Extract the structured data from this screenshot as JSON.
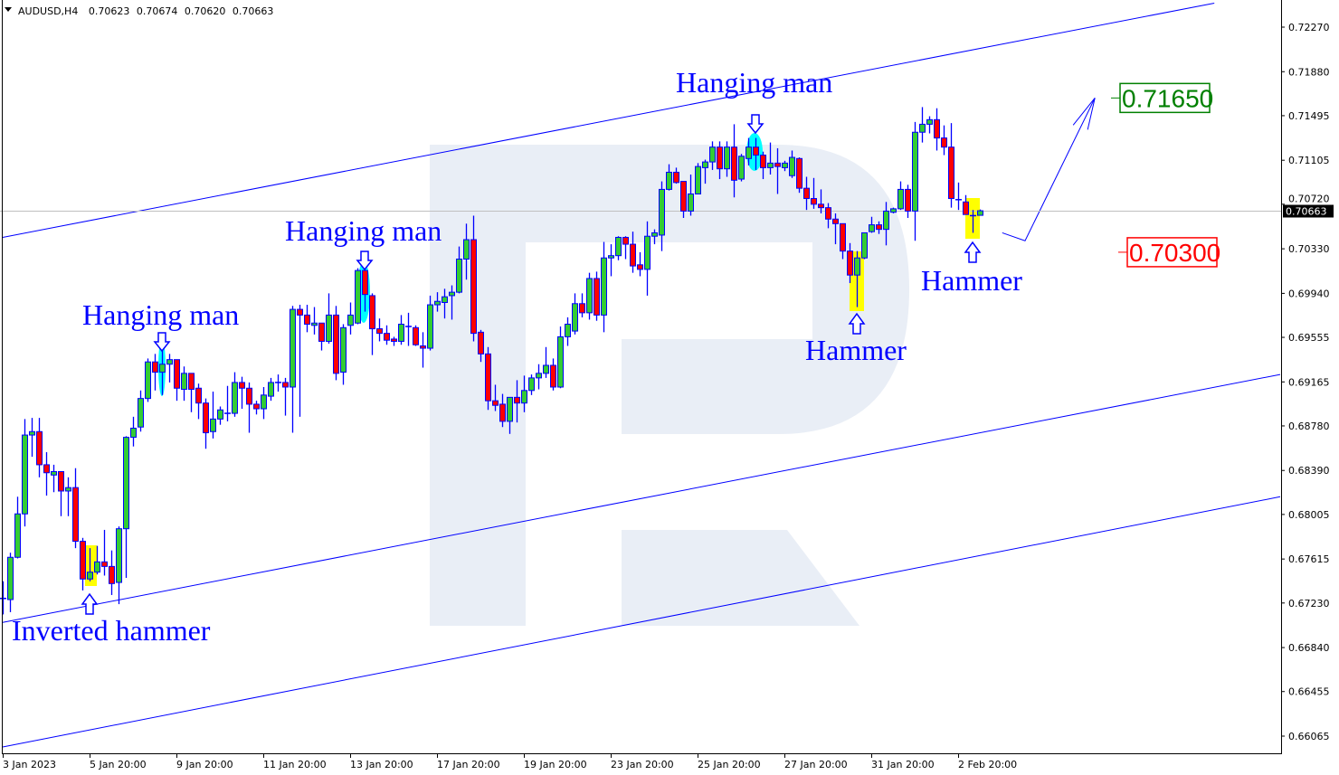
{
  "header": {
    "symbol": "AUDUSD,H4",
    "open": "0.70623",
    "high": "0.70674",
    "low": "0.70620",
    "close": "0.70663"
  },
  "colors": {
    "bull": "#33cc33",
    "bear": "#ff0000",
    "outline": "#0000ff",
    "lines": "#0000ff",
    "highlight": "#ffff00",
    "pattern_glow": "#00ffff",
    "target_up": "#008000",
    "target_down": "#ff0000",
    "watermark": "#e9eef6",
    "price_line": "#c0c0c0"
  },
  "chart_data": {
    "type": "candlestick",
    "title": "AUDUSD,H4",
    "timeframe": "H4",
    "ylim": [
      0.6591,
      0.7251
    ],
    "grid": false,
    "yticks": [
      "0.72270",
      "0.71880",
      "0.71495",
      "0.71105",
      "0.70720",
      "0.70330",
      "0.69940",
      "0.69555",
      "0.69165",
      "0.68780",
      "0.68390",
      "0.68005",
      "0.67615",
      "0.67230",
      "0.66840",
      "0.66455",
      "0.66065"
    ],
    "xticks": [
      {
        "label": "3 Jan 2023",
        "index": 0
      },
      {
        "label": "5 Jan 20:00",
        "index": 12
      },
      {
        "label": "9 Jan 20:00",
        "index": 24
      },
      {
        "label": "11 Jan 20:00",
        "index": 36
      },
      {
        "label": "13 Jan 20:00",
        "index": 48
      },
      {
        "label": "17 Jan 20:00",
        "index": 60
      },
      {
        "label": "19 Jan 20:00",
        "index": 72
      },
      {
        "label": "23 Jan 20:00",
        "index": 84
      },
      {
        "label": "25 Jan 20:00",
        "index": 96
      },
      {
        "label": "27 Jan 20:00",
        "index": 108
      },
      {
        "label": "31 Jan 20:00",
        "index": 120
      },
      {
        "label": "2 Feb 20:00",
        "index": 132
      }
    ],
    "current_price": "0.70663",
    "candles_ohlc": [
      [
        0.6726,
        0.6742,
        0.6713,
        0.6727
      ],
      [
        0.6726,
        0.6767,
        0.6715,
        0.6763
      ],
      [
        0.6763,
        0.6816,
        0.6762,
        0.6801
      ],
      [
        0.6801,
        0.6884,
        0.679,
        0.687
      ],
      [
        0.687,
        0.6885,
        0.6851,
        0.6873
      ],
      [
        0.6873,
        0.6885,
        0.6833,
        0.6844
      ],
      [
        0.6844,
        0.6855,
        0.6817,
        0.6837
      ],
      [
        0.6835,
        0.6844,
        0.682,
        0.6838
      ],
      [
        0.6838,
        0.6838,
        0.6799,
        0.6821
      ],
      [
        0.6821,
        0.6833,
        0.6799,
        0.6824
      ],
      [
        0.6824,
        0.6841,
        0.6771,
        0.6777
      ],
      [
        0.6777,
        0.678,
        0.6734,
        0.6744
      ],
      [
        0.6744,
        0.6771,
        0.6742,
        0.675
      ],
      [
        0.675,
        0.6773,
        0.6748,
        0.6759
      ],
      [
        0.6759,
        0.6787,
        0.6747,
        0.6755
      ],
      [
        0.6755,
        0.6769,
        0.673,
        0.674
      ],
      [
        0.6741,
        0.679,
        0.6722,
        0.6788
      ],
      [
        0.6788,
        0.6869,
        0.6745,
        0.6868
      ],
      [
        0.6868,
        0.6886,
        0.686,
        0.6876
      ],
      [
        0.6877,
        0.6909,
        0.6873,
        0.6902
      ],
      [
        0.6902,
        0.6937,
        0.6899,
        0.6934
      ],
      [
        0.6934,
        0.6941,
        0.6909,
        0.6925
      ],
      [
        0.6925,
        0.6954,
        0.6905,
        0.6932
      ],
      [
        0.6932,
        0.6941,
        0.6916,
        0.6936
      ],
      [
        0.6936,
        0.6936,
        0.69,
        0.6911
      ],
      [
        0.691,
        0.693,
        0.69,
        0.6924
      ],
      [
        0.6924,
        0.6924,
        0.689,
        0.691
      ],
      [
        0.6911,
        0.6915,
        0.6884,
        0.6898
      ],
      [
        0.6898,
        0.6902,
        0.6858,
        0.6872
      ],
      [
        0.6873,
        0.6908,
        0.6867,
        0.6884
      ],
      [
        0.6884,
        0.6895,
        0.6879,
        0.6892
      ],
      [
        0.6889,
        0.6913,
        0.6882,
        0.6889
      ],
      [
        0.6889,
        0.6925,
        0.6886,
        0.6916
      ],
      [
        0.6916,
        0.6921,
        0.6893,
        0.6911
      ],
      [
        0.6911,
        0.6916,
        0.6872,
        0.6897
      ],
      [
        0.6897,
        0.69,
        0.6888,
        0.6893
      ],
      [
        0.6893,
        0.6912,
        0.6884,
        0.6905
      ],
      [
        0.6904,
        0.692,
        0.69,
        0.6916
      ],
      [
        0.6916,
        0.6923,
        0.6908,
        0.6916
      ],
      [
        0.6916,
        0.692,
        0.6887,
        0.6912
      ],
      [
        0.6912,
        0.6983,
        0.6872,
        0.698
      ],
      [
        0.698,
        0.6984,
        0.6886,
        0.6975
      ],
      [
        0.6975,
        0.6984,
        0.696,
        0.6967
      ],
      [
        0.6966,
        0.6982,
        0.6958,
        0.6968
      ],
      [
        0.6968,
        0.6968,
        0.6944,
        0.6952
      ],
      [
        0.6952,
        0.6994,
        0.695,
        0.6975
      ],
      [
        0.6975,
        0.6983,
        0.6918,
        0.6924
      ],
      [
        0.6925,
        0.6967,
        0.6914,
        0.6964
      ],
      [
        0.6966,
        0.6986,
        0.6958,
        0.6975
      ],
      [
        0.6968,
        0.7016,
        0.6967,
        0.7014
      ],
      [
        0.7014,
        0.7021,
        0.6978,
        0.6993
      ],
      [
        0.6992,
        0.6994,
        0.694,
        0.6963
      ],
      [
        0.6963,
        0.6972,
        0.6952,
        0.6959
      ],
      [
        0.6959,
        0.6966,
        0.6949,
        0.6953
      ],
      [
        0.6954,
        0.6956,
        0.6948,
        0.6952
      ],
      [
        0.6952,
        0.6975,
        0.6949,
        0.6967
      ],
      [
        0.6965,
        0.6977,
        0.6948,
        0.6965
      ],
      [
        0.6964,
        0.6966,
        0.6948,
        0.6949
      ],
      [
        0.6948,
        0.696,
        0.6929,
        0.6946
      ],
      [
        0.6946,
        0.6992,
        0.6944,
        0.6984
      ],
      [
        0.6984,
        0.6995,
        0.6978,
        0.6987
      ],
      [
        0.6986,
        0.6998,
        0.6972,
        0.6991
      ],
      [
        0.6992,
        0.7001,
        0.6971,
        0.6995
      ],
      [
        0.6995,
        0.7035,
        0.6994,
        0.7024
      ],
      [
        0.7024,
        0.7055,
        0.7006,
        0.7041
      ],
      [
        0.7041,
        0.7062,
        0.6952,
        0.6959
      ],
      [
        0.696,
        0.6962,
        0.6934,
        0.6941
      ],
      [
        0.6941,
        0.6947,
        0.6892,
        0.69
      ],
      [
        0.69,
        0.6914,
        0.6891,
        0.6896
      ],
      [
        0.6897,
        0.6906,
        0.6877,
        0.6882
      ],
      [
        0.6882,
        0.6903,
        0.6871,
        0.6903
      ],
      [
        0.6903,
        0.6918,
        0.6881,
        0.6898
      ],
      [
        0.6898,
        0.6922,
        0.689,
        0.6909
      ],
      [
        0.6909,
        0.6923,
        0.6905,
        0.692
      ],
      [
        0.692,
        0.6932,
        0.691,
        0.6924
      ],
      [
        0.6924,
        0.6947,
        0.692,
        0.6931
      ],
      [
        0.6931,
        0.6937,
        0.6909,
        0.6912
      ],
      [
        0.6912,
        0.6965,
        0.6911,
        0.6956
      ],
      [
        0.6956,
        0.6973,
        0.6948,
        0.6967
      ],
      [
        0.6961,
        0.6994,
        0.6958,
        0.6985
      ],
      [
        0.6985,
        0.6994,
        0.6973,
        0.6977
      ],
      [
        0.6977,
        0.7012,
        0.6971,
        0.7007
      ],
      [
        0.7007,
        0.7013,
        0.697,
        0.6975
      ],
      [
        0.6975,
        0.7039,
        0.696,
        0.7025
      ],
      [
        0.7025,
        0.7037,
        0.7009,
        0.7027
      ],
      [
        0.7027,
        0.7044,
        0.7023,
        0.7043
      ],
      [
        0.7043,
        0.7044,
        0.7024,
        0.7037
      ],
      [
        0.7037,
        0.7048,
        0.7012,
        0.7018
      ],
      [
        0.7019,
        0.703,
        0.7009,
        0.7015
      ],
      [
        0.7015,
        0.7057,
        0.6992,
        0.7044
      ],
      [
        0.7044,
        0.705,
        0.7037,
        0.7047
      ],
      [
        0.7045,
        0.7092,
        0.7031,
        0.7085
      ],
      [
        0.7085,
        0.7107,
        0.7084,
        0.71
      ],
      [
        0.71,
        0.7104,
        0.709,
        0.7091
      ],
      [
        0.7092,
        0.7092,
        0.706,
        0.7066
      ],
      [
        0.7066,
        0.7098,
        0.7062,
        0.7081
      ],
      [
        0.7081,
        0.7108,
        0.7081,
        0.7105
      ],
      [
        0.7104,
        0.7111,
        0.709,
        0.7109
      ],
      [
        0.7109,
        0.7127,
        0.7102,
        0.7122
      ],
      [
        0.7122,
        0.7127,
        0.7094,
        0.7103
      ],
      [
        0.7103,
        0.7127,
        0.7096,
        0.7122
      ],
      [
        0.7122,
        0.7142,
        0.7078,
        0.7093
      ],
      [
        0.7094,
        0.7116,
        0.7092,
        0.7114
      ],
      [
        0.7112,
        0.713,
        0.7106,
        0.7122
      ],
      [
        0.7122,
        0.713,
        0.7102,
        0.7115
      ],
      [
        0.7115,
        0.7118,
        0.7094,
        0.7104
      ],
      [
        0.7104,
        0.7126,
        0.7098,
        0.7108
      ],
      [
        0.7108,
        0.7121,
        0.7081,
        0.7105
      ],
      [
        0.7104,
        0.711,
        0.7101,
        0.7108
      ],
      [
        0.7097,
        0.7119,
        0.7095,
        0.7113
      ],
      [
        0.7112,
        0.7113,
        0.7082,
        0.7086
      ],
      [
        0.7086,
        0.7096,
        0.7067,
        0.7077
      ],
      [
        0.7077,
        0.7095,
        0.7068,
        0.7072
      ],
      [
        0.7072,
        0.7085,
        0.7064,
        0.7069
      ],
      [
        0.7069,
        0.7073,
        0.7051,
        0.7059
      ],
      [
        0.7059,
        0.7064,
        0.7037,
        0.7055
      ],
      [
        0.7055,
        0.7055,
        0.7024,
        0.7031
      ],
      [
        0.7031,
        0.7038,
        0.7003,
        0.701
      ],
      [
        0.701,
        0.7031,
        0.6982,
        0.7025
      ],
      [
        0.7025,
        0.7047,
        0.7024,
        0.7047
      ],
      [
        0.7048,
        0.7061,
        0.7047,
        0.7054
      ],
      [
        0.7054,
        0.7057,
        0.7046,
        0.705
      ],
      [
        0.705,
        0.7074,
        0.7036,
        0.7066
      ],
      [
        0.7065,
        0.7069,
        0.7064,
        0.7068
      ],
      [
        0.7068,
        0.7092,
        0.7067,
        0.7085
      ],
      [
        0.7085,
        0.7089,
        0.706,
        0.7066
      ],
      [
        0.7066,
        0.7144,
        0.704,
        0.7135
      ],
      [
        0.7135,
        0.7157,
        0.7126,
        0.7142
      ],
      [
        0.7142,
        0.7149,
        0.7134,
        0.7146
      ],
      [
        0.7146,
        0.7156,
        0.7119,
        0.713
      ],
      [
        0.713,
        0.7141,
        0.7115,
        0.7122
      ],
      [
        0.7122,
        0.7143,
        0.7069,
        0.7077
      ],
      [
        0.7076,
        0.7091,
        0.7067,
        0.7076
      ],
      [
        0.7074,
        0.708,
        0.7063,
        0.7063
      ],
      [
        0.7062,
        0.7067,
        0.7047,
        0.7062
      ],
      [
        0.70623,
        0.70674,
        0.7062,
        0.70663
      ]
    ],
    "channel_lines": [
      {
        "from": [
          0,
          0.7043
        ],
        "to": [
          167.4,
          0.7248
        ]
      },
      {
        "from": [
          0,
          0.6706
        ],
        "to": [
          176.5,
          0.6923
        ]
      },
      {
        "from": [
          0,
          0.6597
        ],
        "to": [
          176.5,
          0.6816
        ]
      }
    ],
    "forecast_path": [
      [
        138.1,
        0.7047
      ],
      [
        141.25,
        0.704
      ],
      [
        150.9,
        0.7165
      ]
    ],
    "targets": [
      {
        "value": "0.71650",
        "price": 0.7165,
        "color": "#008000"
      },
      {
        "value": "0.70300",
        "price": 0.703,
        "color": "#ff0000"
      }
    ],
    "patterns": [
      {
        "label": "Inverted hammer",
        "index": 12,
        "mark": "highlight",
        "arrow": "up"
      },
      {
        "label": "Hanging man",
        "index": 22,
        "mark": "glow",
        "arrow": "down"
      },
      {
        "label": "Hanging man",
        "index": 50,
        "mark": "glow",
        "arrow": "down"
      },
      {
        "label": "Hanging man",
        "index": 104,
        "mark": "glow",
        "arrow": "down"
      },
      {
        "label": "Hammer",
        "index": 118,
        "mark": "highlight",
        "arrow": "up"
      },
      {
        "label": "Hammer",
        "index": 134,
        "mark": "highlight",
        "arrow": "up"
      }
    ]
  }
}
